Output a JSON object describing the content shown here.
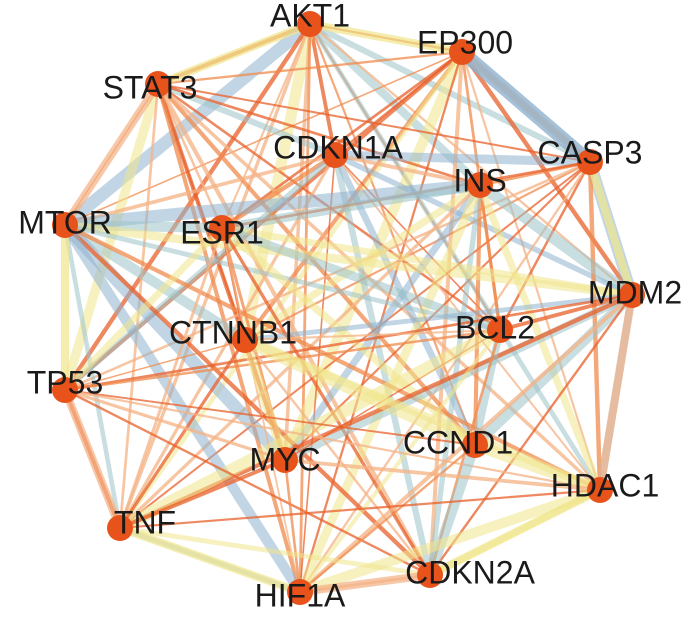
{
  "nodes": [
    {
      "label": "AKT1"
    },
    {
      "label": "EP300"
    },
    {
      "label": "STAT3"
    },
    {
      "label": "CDKN1A"
    },
    {
      "label": "CASP3"
    },
    {
      "label": "INS"
    },
    {
      "label": "MTOR"
    },
    {
      "label": "ESR1"
    },
    {
      "label": "MDM2"
    },
    {
      "label": "BCL2"
    },
    {
      "label": "CTNNB1"
    },
    {
      "label": "TP53"
    },
    {
      "label": "CCND1"
    },
    {
      "label": "MYC"
    },
    {
      "label": "HDAC1"
    },
    {
      "label": "TNF"
    },
    {
      "label": "CDKN2A"
    },
    {
      "label": "HIF1A"
    }
  ]
}
